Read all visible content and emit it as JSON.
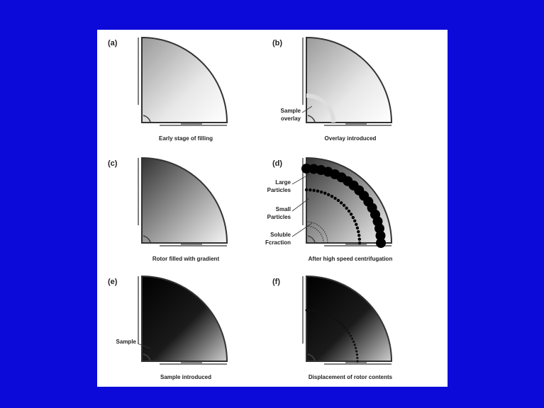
{
  "panels": [
    {
      "label": "(a)",
      "caption": "Early stage of filling",
      "annotations": []
    },
    {
      "label": "(b)",
      "caption": "Overlay introduced",
      "annotations": [
        {
          "lines": [
            "Sample",
            "overlay"
          ]
        }
      ]
    },
    {
      "label": "(c)",
      "caption": "Rotor filled with gradient",
      "annotations": []
    },
    {
      "label": "(d)",
      "caption": "After high speed centrifugation",
      "annotations": [
        {
          "lines": [
            "Large",
            "Particles"
          ]
        },
        {
          "lines": [
            "Small",
            "Particles"
          ]
        },
        {
          "lines": [
            "Soluble",
            "Fcraction"
          ]
        }
      ]
    },
    {
      "label": "(e)",
      "caption": "Sample introduced",
      "annotations": [
        {
          "lines": [
            "Sample"
          ]
        }
      ]
    },
    {
      "label": "(f)",
      "caption": "Displacement  of rotor contents",
      "annotations": []
    }
  ]
}
